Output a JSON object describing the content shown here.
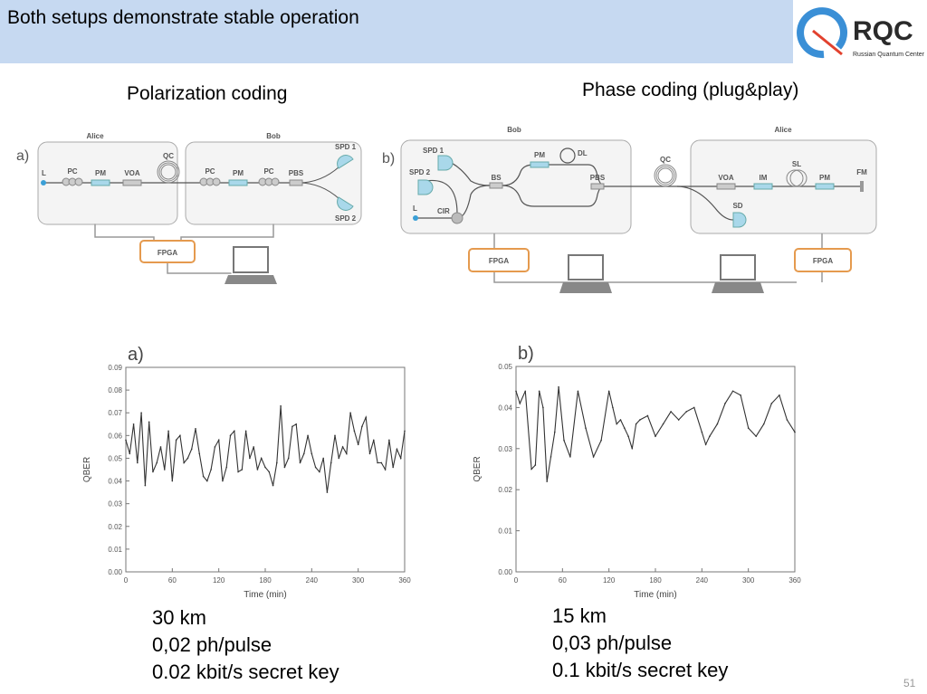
{
  "header": {
    "title": "Both setups demonstrate stable operation"
  },
  "logo": {
    "text": "RQC",
    "subtitle": "Russian Quantum Center",
    "colors": {
      "q_blue": "#3a8fd6",
      "q_red": "#e2412e",
      "text": "#2a2a2a"
    }
  },
  "colors": {
    "header_bg": "#c6d9f1",
    "component_blue": "#a9d8ea",
    "fpga_orange": "#e59a4e"
  },
  "left": {
    "heading": "Polarization coding",
    "diagram": {
      "panel": "a)",
      "alice": "Alice",
      "bob": "Bob",
      "L": "L",
      "PC": "PC",
      "PM": "PM",
      "VOA": "VOA",
      "QC": "QC",
      "PBS": "PBS",
      "SPD1": "SPD 1",
      "SPD2": "SPD 2",
      "FPGA": "FPGA"
    },
    "stats": [
      "30 km",
      "0,02 ph/pulse",
      "0.02 kbit/s secret key"
    ]
  },
  "right": {
    "heading": "Phase coding (plug&play)",
    "diagram": {
      "panel": "b)",
      "bob": "Bob",
      "alice": "Alice",
      "SPD1": "SPD 1",
      "SPD2": "SPD 2",
      "L": "L",
      "CIR": "CIR",
      "BS": "BS",
      "PM": "PM",
      "DL": "DL",
      "PBS": "PBS",
      "QC": "QC",
      "VOA": "VOA",
      "IM": "IM",
      "SL": "SL",
      "PM2": "PM",
      "FM": "FM",
      "SD": "SD",
      "FPGA": "FPGA"
    },
    "stats": [
      "15 km",
      "0,03 ph/pulse",
      "0.1 kbit/s secret key"
    ]
  },
  "chart_data": [
    {
      "type": "line",
      "panel": "a)",
      "xlabel": "Time (min)",
      "ylabel": "QBER",
      "xlim": [
        0,
        360
      ],
      "ylim": [
        0,
        0.09
      ],
      "xticks": [
        0,
        60,
        120,
        180,
        240,
        300,
        360
      ],
      "yticks": [
        "0.00",
        "0.01",
        "0.02",
        "0.03",
        "0.04",
        "0.05",
        "0.06",
        "0.07",
        "0.08",
        "0.09"
      ],
      "grid": false,
      "x": [
        0,
        5,
        10,
        15,
        20,
        25,
        30,
        35,
        40,
        45,
        50,
        55,
        60,
        65,
        70,
        75,
        80,
        85,
        90,
        95,
        100,
        105,
        110,
        115,
        120,
        125,
        130,
        135,
        140,
        145,
        150,
        155,
        160,
        165,
        170,
        175,
        180,
        185,
        190,
        195,
        200,
        205,
        210,
        215,
        220,
        225,
        230,
        235,
        240,
        245,
        250,
        255,
        260,
        265,
        270,
        275,
        280,
        285,
        290,
        295,
        300,
        305,
        310,
        315,
        320,
        325,
        330,
        335,
        340,
        345,
        350,
        355,
        360
      ],
      "y": [
        0.058,
        0.052,
        0.065,
        0.048,
        0.07,
        0.038,
        0.066,
        0.044,
        0.048,
        0.055,
        0.045,
        0.062,
        0.04,
        0.058,
        0.06,
        0.048,
        0.05,
        0.054,
        0.063,
        0.052,
        0.042,
        0.04,
        0.045,
        0.055,
        0.058,
        0.04,
        0.046,
        0.06,
        0.062,
        0.044,
        0.045,
        0.062,
        0.05,
        0.055,
        0.045,
        0.05,
        0.046,
        0.044,
        0.038,
        0.048,
        0.073,
        0.046,
        0.05,
        0.064,
        0.065,
        0.048,
        0.052,
        0.06,
        0.052,
        0.046,
        0.044,
        0.05,
        0.035,
        0.048,
        0.06,
        0.05,
        0.055,
        0.052,
        0.07,
        0.062,
        0.056,
        0.064,
        0.068,
        0.052,
        0.058,
        0.048,
        0.048,
        0.045,
        0.058,
        0.046,
        0.054,
        0.05,
        0.062
      ]
    },
    {
      "type": "line",
      "panel": "b)",
      "xlabel": "Time (min)",
      "ylabel": "QBER",
      "xlim": [
        0,
        360
      ],
      "ylim": [
        0,
        0.05
      ],
      "xticks": [
        0,
        60,
        120,
        180,
        240,
        300,
        360
      ],
      "yticks": [
        "0.00",
        "0.01",
        "0.02",
        "0.03",
        "0.04",
        "0.05"
      ],
      "grid": false,
      "x": [
        0,
        5,
        12,
        20,
        25,
        30,
        35,
        40,
        45,
        50,
        55,
        62,
        70,
        80,
        90,
        100,
        110,
        120,
        125,
        130,
        135,
        140,
        145,
        150,
        155,
        160,
        170,
        180,
        190,
        200,
        210,
        220,
        230,
        240,
        245,
        250,
        260,
        270,
        280,
        290,
        300,
        310,
        320,
        330,
        340,
        350,
        360
      ],
      "y": [
        0.044,
        0.041,
        0.044,
        0.025,
        0.026,
        0.044,
        0.04,
        0.022,
        0.028,
        0.034,
        0.045,
        0.032,
        0.028,
        0.044,
        0.035,
        0.028,
        0.032,
        0.044,
        0.04,
        0.036,
        0.037,
        0.035,
        0.033,
        0.03,
        0.036,
        0.037,
        0.038,
        0.033,
        0.036,
        0.039,
        0.037,
        0.039,
        0.04,
        0.034,
        0.031,
        0.033,
        0.036,
        0.041,
        0.044,
        0.043,
        0.035,
        0.033,
        0.036,
        0.041,
        0.043,
        0.037,
        0.034
      ]
    }
  ],
  "footer": {
    "page": "51"
  }
}
